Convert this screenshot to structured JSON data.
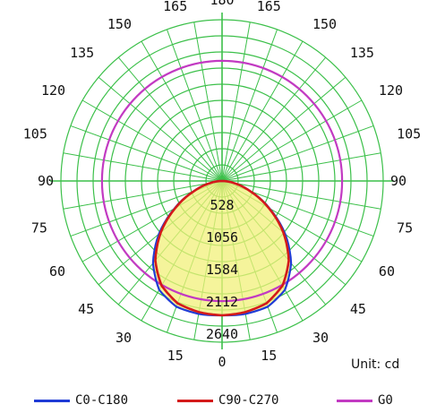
{
  "chart_data": {
    "type": "polar",
    "angular_axis": {
      "direction": "0 at bottom, 180 at top, mirrored on both sides",
      "tick_labels_left": [
        "0",
        "15",
        "30",
        "45",
        "60",
        "75",
        "90",
        "105",
        "120",
        "135",
        "150",
        "165",
        "180"
      ],
      "tick_labels_right": [
        "15",
        "30",
        "45",
        "60",
        "75",
        "90",
        "105",
        "120",
        "135",
        "150",
        "165"
      ],
      "tick_angles": [
        0,
        15,
        30,
        45,
        60,
        75,
        90,
        105,
        120,
        135,
        150,
        165,
        180
      ],
      "spoke_step_deg": 10
    },
    "radial_axis": {
      "tick_labels": [
        "528",
        "1056",
        "1584",
        "2112",
        "2640"
      ],
      "tick_values": [
        528,
        1056,
        1584,
        2112,
        2640
      ],
      "max": 2640,
      "minor_step": 264
    },
    "unit_label": "Unit: cd",
    "grid_color": "#3cc04a",
    "fill_color": "#f2f07a",
    "series": [
      {
        "name": "C0-C180",
        "color": "#1f3bd6",
        "angles": [
          0,
          10,
          20,
          30,
          40,
          50,
          60,
          70,
          80,
          90
        ],
        "values": [
          2200,
          2210,
          2190,
          2060,
          1760,
          1350,
          900,
          500,
          200,
          0
        ]
      },
      {
        "name": "C90-C270",
        "color": "#d41a1a",
        "angles": [
          0,
          10,
          20,
          30,
          40,
          50,
          60,
          70,
          80,
          90
        ],
        "values": [
          2200,
          2180,
          2130,
          1980,
          1700,
          1310,
          880,
          490,
          190,
          0
        ]
      },
      {
        "name": "G0",
        "color": "#c23ac2",
        "angles": [
          0,
          30,
          60,
          90,
          120,
          150,
          180
        ],
        "values": [
          2640,
          2640,
          2640,
          2640,
          2640,
          2640,
          2640
        ]
      }
    ]
  }
}
